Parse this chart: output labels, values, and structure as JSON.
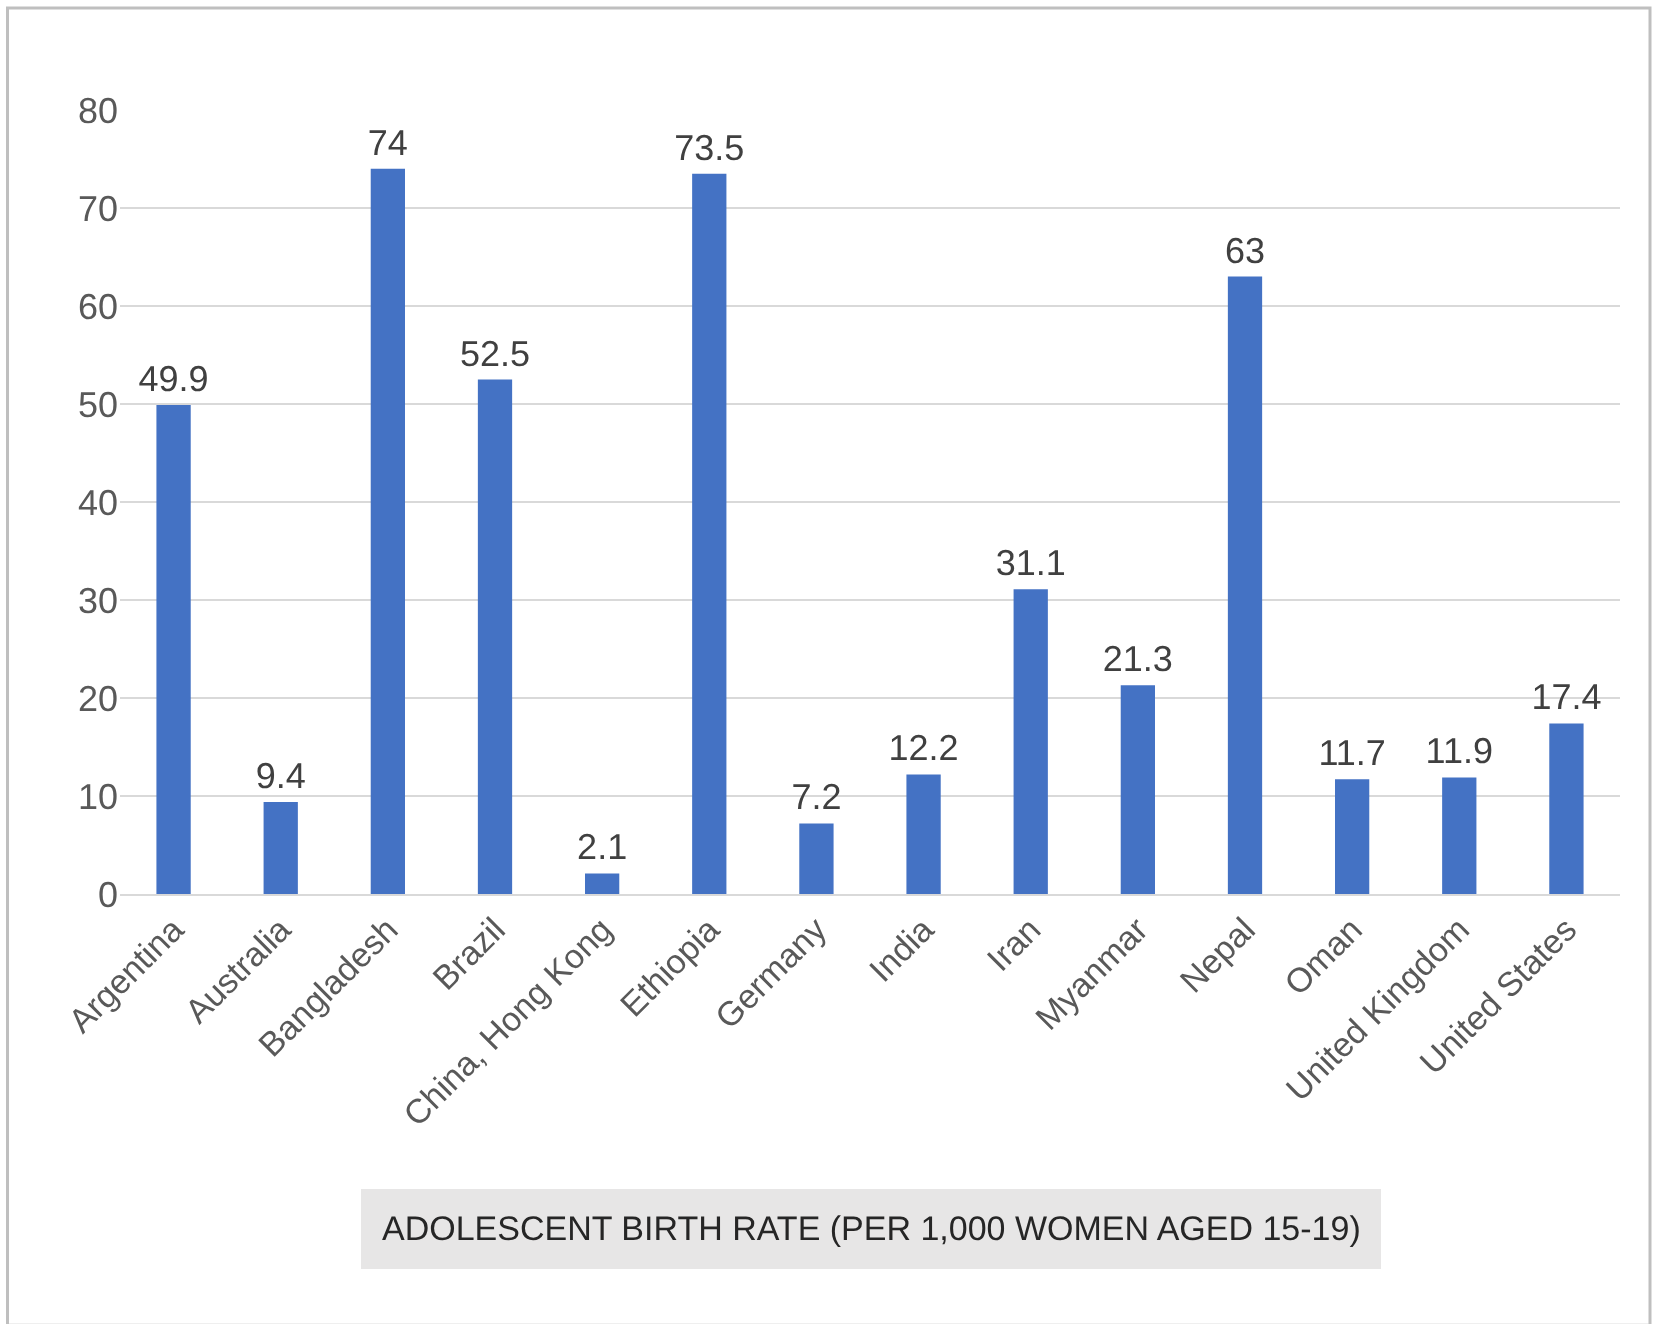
{
  "chart_data": {
    "type": "bar",
    "xlabel": "ADOLESCENT BIRTH RATE (PER 1,000 WOMEN AGED 15-19)",
    "categories": [
      "Argentina",
      "Australia",
      "Bangladesh",
      "Brazil",
      "China, Hong Kong",
      "Ethiopia",
      "Germany",
      "India",
      "Iran",
      "Myanmar",
      "Nepal",
      "Oman",
      "United Kingdom",
      "United States"
    ],
    "values": [
      49.9,
      9.4,
      74,
      52.5,
      2.1,
      73.5,
      7.2,
      12.2,
      31.1,
      21.3,
      63,
      11.7,
      11.9,
      17.4
    ],
    "color": "#4472c4",
    "ylim": [
      0,
      80
    ],
    "yticks": [
      0,
      10,
      20,
      30,
      40,
      50,
      60,
      70,
      80
    ],
    "grid": "y",
    "data_labels": true
  }
}
